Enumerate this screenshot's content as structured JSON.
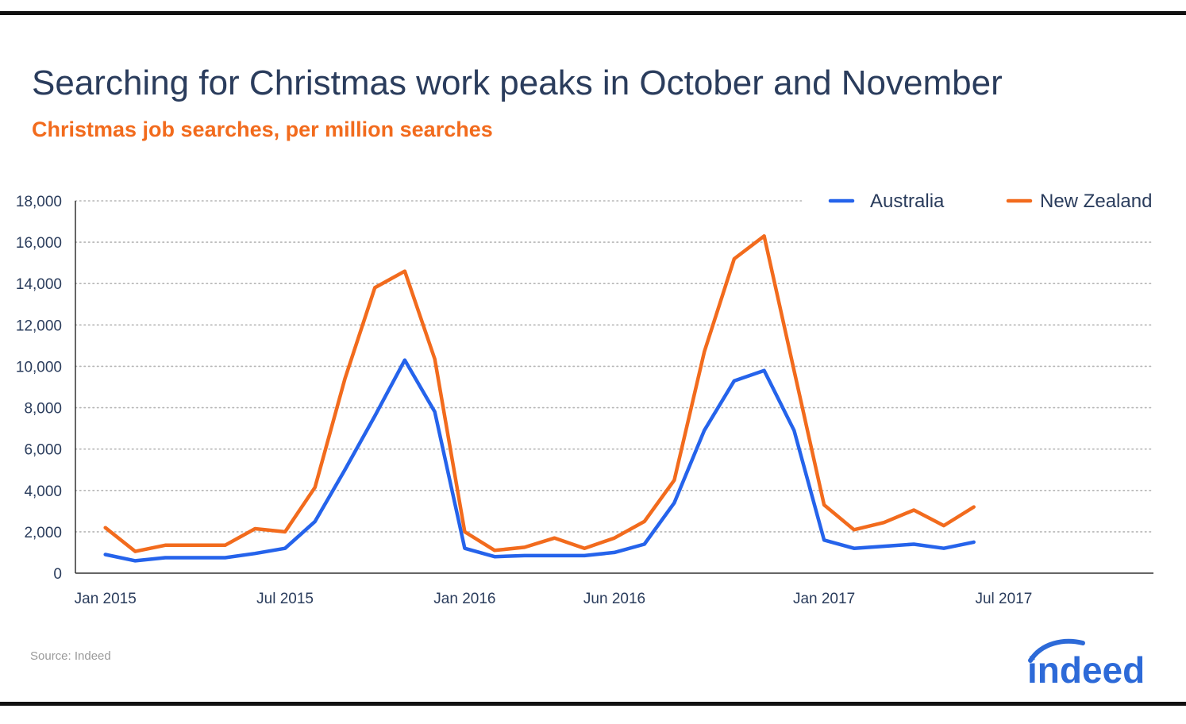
{
  "header": {
    "title": "Searching for Christmas work peaks in October and November",
    "subtitle": "Christmas job searches, per million searches"
  },
  "footer": {
    "source": "Source: Indeed",
    "logo_text": "indeed"
  },
  "colors": {
    "australia": "#2563eb",
    "new_zealand": "#f26b1d",
    "title": "#2a3c5c",
    "subtitle": "#f26b1d",
    "grid": "#b5b5b5"
  },
  "chart_data": {
    "type": "line",
    "title": "Searching for Christmas work peaks in October and November",
    "subtitle": "Christmas job searches, per million searches",
    "xlabel": "",
    "ylabel": "",
    "x": [
      "2015-01",
      "2015-02",
      "2015-03",
      "2015-04",
      "2015-05",
      "2015-06",
      "2015-07",
      "2015-08",
      "2015-09",
      "2015-10",
      "2015-11",
      "2015-12",
      "2016-01",
      "2016-02",
      "2016-03",
      "2016-04",
      "2016-05",
      "2016-06",
      "2016-07",
      "2016-08",
      "2016-09",
      "2016-10",
      "2016-11",
      "2016-12",
      "2017-01",
      "2017-02",
      "2017-03",
      "2017-04",
      "2017-05",
      "2017-06"
    ],
    "x_ticks": [
      {
        "date": "2015-01",
        "label": "Jan 2015"
      },
      {
        "date": "2015-07",
        "label": "Jul 2015"
      },
      {
        "date": "2016-01",
        "label": "Jan 2016"
      },
      {
        "date": "2016-06",
        "label": "Jun 2016"
      },
      {
        "date": "2017-01",
        "label": "Jan 2017"
      },
      {
        "date": "2017-07",
        "label": "Jul 2017"
      }
    ],
    "xlim": [
      "2014-12",
      "2017-12"
    ],
    "ylim": [
      0,
      18000
    ],
    "y_ticks": [
      0,
      2000,
      4000,
      6000,
      8000,
      10000,
      12000,
      14000,
      16000,
      18000
    ],
    "y_tick_labels": [
      "0",
      "2,000",
      "4,000",
      "6,000",
      "8,000",
      "10,000",
      "12,000",
      "14,000",
      "16,000",
      "18,000"
    ],
    "grid": "horizontal dotted",
    "legend": "top-right",
    "series": [
      {
        "name": "Australia",
        "color": "#2563eb",
        "values": [
          900,
          600,
          750,
          750,
          750,
          950,
          1200,
          2500,
          5000,
          7600,
          10300,
          7800,
          1200,
          800,
          850,
          850,
          850,
          1000,
          1400,
          3400,
          6900,
          9300,
          9800,
          6900,
          1600,
          1200,
          1300,
          1400,
          1200,
          1500
        ]
      },
      {
        "name": "New Zealand",
        "color": "#f26b1d",
        "values": [
          2200,
          1050,
          1350,
          1350,
          1350,
          2150,
          2000,
          4150,
          9400,
          13800,
          14600,
          10350,
          2000,
          1100,
          1250,
          1700,
          1200,
          1700,
          2500,
          4500,
          10700,
          15200,
          16300,
          9800,
          3300,
          2100,
          2450,
          3050,
          2300,
          3200
        ]
      }
    ]
  }
}
